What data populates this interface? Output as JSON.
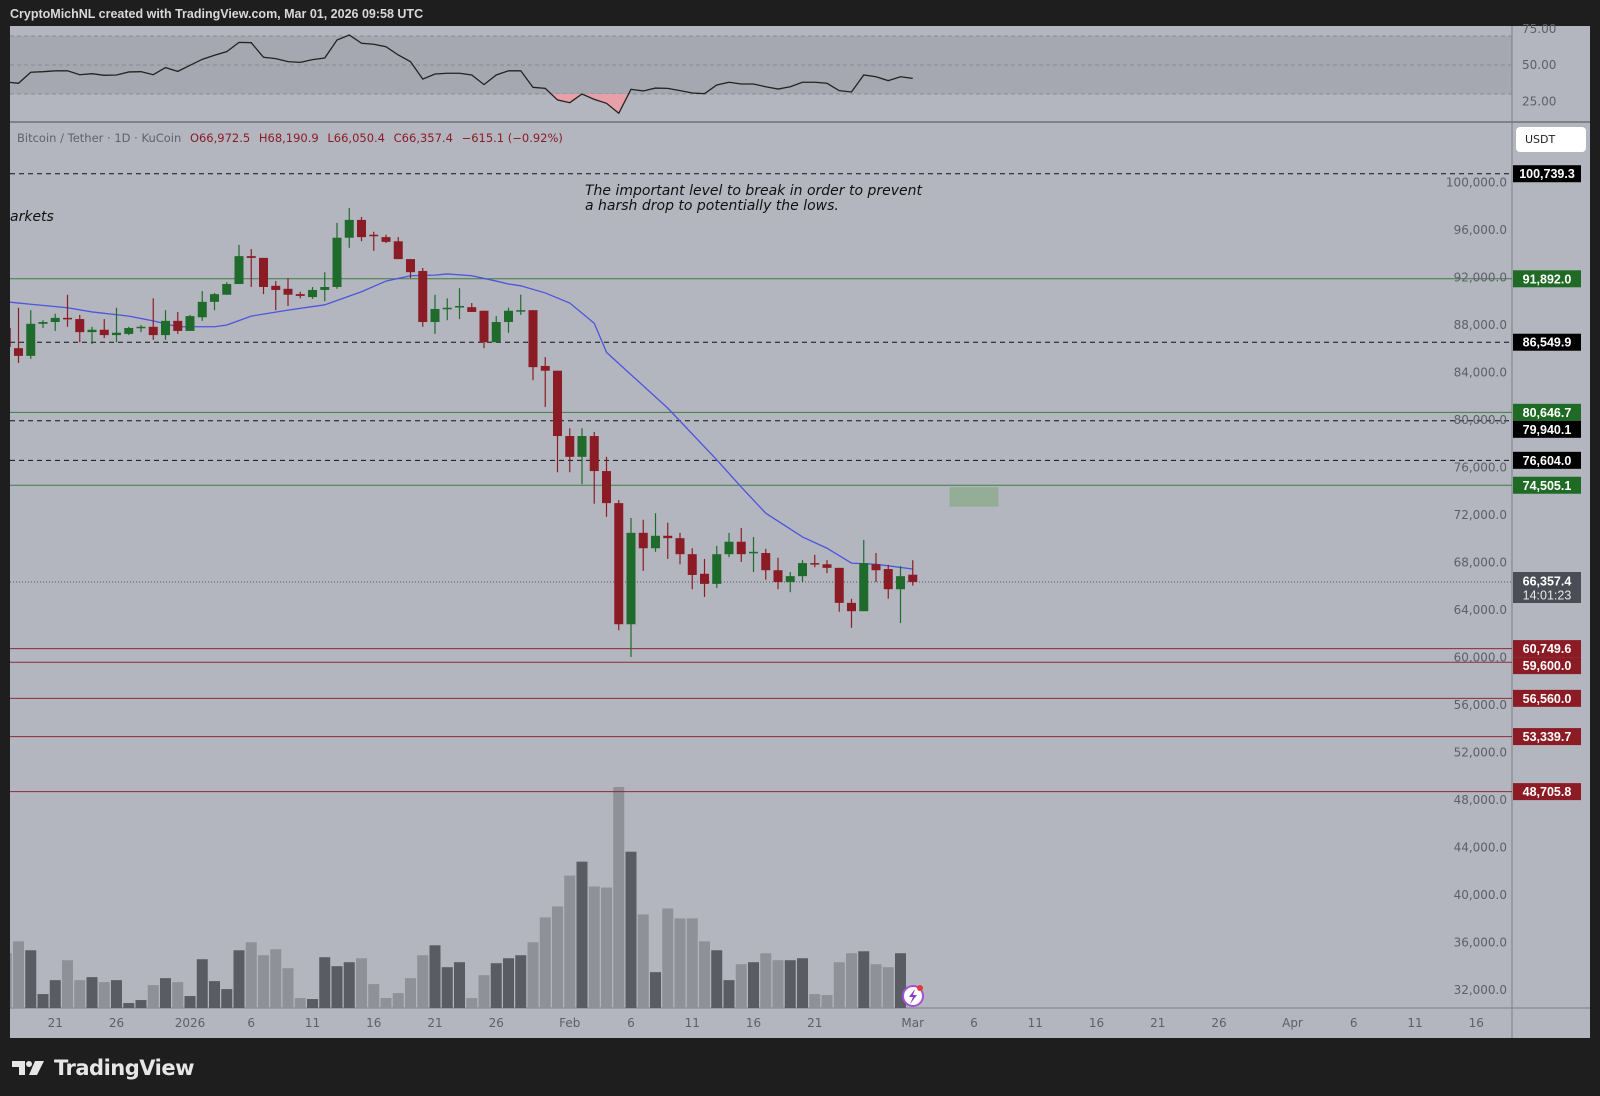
{
  "header": {
    "attribution": "CryptoMichNL created with TradingView.com, Mar 01, 2026 09:58 UTC"
  },
  "legend": {
    "symbol": "Bitcoin / Tether · 1D · KuCoin",
    "open": "O66,972.5",
    "high": "H68,190.9",
    "low": "L66,050.4",
    "close": "C66,357.4",
    "change": "−615.1 (−0.92%)"
  },
  "currency_button": "USDT",
  "annotation": {
    "line1": "The important level to break in order to prevent",
    "line2": "a harsh drop to potentially the lows."
  },
  "partial_text": "arkets",
  "logo": {
    "text": "TradingView"
  },
  "colors": {
    "up": "#1f6b2b",
    "down": "#8b1c25",
    "ma": "#4b55dd",
    "rsi": "#222222",
    "level_green": "#3f7d43",
    "level_red": "#8e2a33",
    "level_black": "#111111",
    "vol_up": "#5a5c63",
    "vol_down": "#8f9199",
    "background": "#b3b6bf"
  },
  "chart_data": {
    "type": "candlestick",
    "symbol": "Bitcoin / Tether",
    "interval": "1D",
    "exchange": "KuCoin",
    "y_axis": {
      "ticks": [
        32000,
        36000,
        40000,
        44000,
        48000,
        52000,
        56000,
        60000,
        64000,
        68000,
        72000,
        76000,
        80000,
        84000,
        88000,
        92000,
        96000,
        100000
      ],
      "tick_format": "0,000.0"
    },
    "x_axis": {
      "ticks": [
        {
          "date": "2025-12-21",
          "label": "21"
        },
        {
          "date": "2025-12-26",
          "label": "26"
        },
        {
          "date": "2026-01-01",
          "label": "2026"
        },
        {
          "date": "2026-01-06",
          "label": "6"
        },
        {
          "date": "2026-01-11",
          "label": "11"
        },
        {
          "date": "2026-01-16",
          "label": "16"
        },
        {
          "date": "2026-01-21",
          "label": "21"
        },
        {
          "date": "2026-01-26",
          "label": "26"
        },
        {
          "date": "2026-02-01",
          "label": "Feb"
        },
        {
          "date": "2026-02-06",
          "label": "6"
        },
        {
          "date": "2026-02-11",
          "label": "11"
        },
        {
          "date": "2026-02-16",
          "label": "16"
        },
        {
          "date": "2026-02-21",
          "label": "21"
        },
        {
          "date": "2026-03-01",
          "label": "Mar"
        },
        {
          "date": "2026-03-06",
          "label": "6"
        },
        {
          "date": "2026-03-11",
          "label": "11"
        },
        {
          "date": "2026-03-16",
          "label": "16"
        },
        {
          "date": "2026-03-21",
          "label": "21"
        },
        {
          "date": "2026-03-26",
          "label": "26"
        },
        {
          "date": "2026-04-01",
          "label": "Apr"
        },
        {
          "date": "2026-04-06",
          "label": "6"
        },
        {
          "date": "2026-04-11",
          "label": "11"
        },
        {
          "date": "2026-04-16",
          "label": "16"
        }
      ]
    },
    "candles": [
      {
        "d": "2025-12-17",
        "o": 87750,
        "h": 88400,
        "l": 85450,
        "c": 86150,
        "v": 55,
        "rsi": 38.3
      },
      {
        "d": "2025-12-18",
        "o": 86050,
        "h": 89450,
        "l": 84800,
        "c": 85400,
        "v": 67,
        "rsi": 37.4
      },
      {
        "d": "2025-12-19",
        "o": 85400,
        "h": 89250,
        "l": 85150,
        "c": 88100,
        "v": 58,
        "rsi": 45.0
      },
      {
        "d": "2025-12-20",
        "o": 88100,
        "h": 88400,
        "l": 87750,
        "c": 88250,
        "v": 14,
        "rsi": 45.4
      },
      {
        "d": "2025-12-21",
        "o": 88250,
        "h": 88950,
        "l": 87500,
        "c": 88600,
        "v": 28,
        "rsi": 46.0
      },
      {
        "d": "2025-12-22",
        "o": 88600,
        "h": 90550,
        "l": 87850,
        "c": 88500,
        "v": 48,
        "rsi": 46.0
      },
      {
        "d": "2025-12-23",
        "o": 88500,
        "h": 88850,
        "l": 86550,
        "c": 87400,
        "v": 28,
        "rsi": 43.3
      },
      {
        "d": "2025-12-24",
        "o": 87400,
        "h": 87850,
        "l": 86400,
        "c": 87600,
        "v": 31,
        "rsi": 44.0
      },
      {
        "d": "2025-12-25",
        "o": 87600,
        "h": 88500,
        "l": 86900,
        "c": 87150,
        "v": 26,
        "rsi": 42.9
      },
      {
        "d": "2025-12-26",
        "o": 87150,
        "h": 89450,
        "l": 86550,
        "c": 87350,
        "v": 28,
        "rsi": 43.1
      },
      {
        "d": "2025-12-27",
        "o": 87250,
        "h": 87850,
        "l": 87150,
        "c": 87750,
        "v": 5,
        "rsi": 45.2
      },
      {
        "d": "2025-12-28",
        "o": 87750,
        "h": 88000,
        "l": 87400,
        "c": 87850,
        "v": 8,
        "rsi": 45.4
      },
      {
        "d": "2025-12-29",
        "o": 87850,
        "h": 90250,
        "l": 86750,
        "c": 87150,
        "v": 23,
        "rsi": 43.3
      },
      {
        "d": "2025-12-30",
        "o": 87150,
        "h": 89250,
        "l": 86750,
        "c": 88350,
        "v": 30,
        "rsi": 48.2
      },
      {
        "d": "2025-12-31",
        "o": 88350,
        "h": 89100,
        "l": 87250,
        "c": 87500,
        "v": 26,
        "rsi": 45.6
      },
      {
        "d": "2026-01-01",
        "o": 87500,
        "h": 88850,
        "l": 87500,
        "c": 88750,
        "v": 12,
        "rsi": 49.8
      },
      {
        "d": "2026-01-02",
        "o": 88650,
        "h": 90850,
        "l": 88350,
        "c": 89950,
        "v": 49,
        "rsi": 53.9
      },
      {
        "d": "2026-01-03",
        "o": 89950,
        "h": 90700,
        "l": 89250,
        "c": 90600,
        "v": 27,
        "rsi": 56.7
      },
      {
        "d": "2026-01-04",
        "o": 90550,
        "h": 91600,
        "l": 90550,
        "c": 91450,
        "v": 19,
        "rsi": 59.2
      },
      {
        "d": "2026-01-05",
        "o": 91450,
        "h": 94750,
        "l": 91450,
        "c": 93800,
        "v": 58,
        "rsi": 65.6
      },
      {
        "d": "2026-01-06",
        "o": 93800,
        "h": 94400,
        "l": 91200,
        "c": 93650,
        "v": 66,
        "rsi": 65.4
      },
      {
        "d": "2026-01-07",
        "o": 93650,
        "h": 93650,
        "l": 90600,
        "c": 91200,
        "v": 53,
        "rsi": 55.3
      },
      {
        "d": "2026-01-08",
        "o": 91300,
        "h": 91700,
        "l": 89250,
        "c": 90950,
        "v": 59,
        "rsi": 54.4
      },
      {
        "d": "2026-01-09",
        "o": 91050,
        "h": 91950,
        "l": 89600,
        "c": 90550,
        "v": 40,
        "rsi": 52.3
      },
      {
        "d": "2026-01-10",
        "o": 90600,
        "h": 90800,
        "l": 90250,
        "c": 90450,
        "v": 10,
        "rsi": 51.8
      },
      {
        "d": "2026-01-11",
        "o": 90350,
        "h": 91200,
        "l": 90200,
        "c": 90950,
        "v": 9,
        "rsi": 53.7
      },
      {
        "d": "2026-01-12",
        "o": 90950,
        "h": 92450,
        "l": 90000,
        "c": 91200,
        "v": 51,
        "rsi": 54.8
      },
      {
        "d": "2026-01-13",
        "o": 91200,
        "h": 96600,
        "l": 91050,
        "c": 95350,
        "v": 42,
        "rsi": 67.2
      },
      {
        "d": "2026-01-14",
        "o": 95350,
        "h": 97850,
        "l": 94500,
        "c": 96850,
        "v": 46,
        "rsi": 70.7
      },
      {
        "d": "2026-01-15",
        "o": 96850,
        "h": 97100,
        "l": 95050,
        "c": 95400,
        "v": 50,
        "rsi": 65.0
      },
      {
        "d": "2026-01-16",
        "o": 95600,
        "h": 95850,
        "l": 94250,
        "c": 95500,
        "v": 24,
        "rsi": 64.3
      },
      {
        "d": "2026-01-17",
        "o": 95400,
        "h": 95600,
        "l": 94900,
        "c": 95000,
        "v": 10,
        "rsi": 62.6
      },
      {
        "d": "2026-01-18",
        "o": 95050,
        "h": 95400,
        "l": 93550,
        "c": 93550,
        "v": 15,
        "rsi": 56.9
      },
      {
        "d": "2026-01-19",
        "o": 93550,
        "h": 93550,
        "l": 91950,
        "c": 92450,
        "v": 30,
        "rsi": 52.3
      },
      {
        "d": "2026-01-20",
        "o": 92550,
        "h": 92800,
        "l": 87850,
        "c": 88250,
        "v": 53,
        "rsi": 40.3
      },
      {
        "d": "2026-01-21",
        "o": 88250,
        "h": 90550,
        "l": 87250,
        "c": 89350,
        "v": 63,
        "rsi": 43.8
      },
      {
        "d": "2026-01-22",
        "o": 89350,
        "h": 90250,
        "l": 88400,
        "c": 89450,
        "v": 41,
        "rsi": 44.3
      },
      {
        "d": "2026-01-23",
        "o": 89500,
        "h": 91100,
        "l": 88500,
        "c": 89600,
        "v": 46,
        "rsi": 44.3
      },
      {
        "d": "2026-01-24",
        "o": 89500,
        "h": 89850,
        "l": 89100,
        "c": 89100,
        "v": 10,
        "rsi": 43.1
      },
      {
        "d": "2026-01-25",
        "o": 89200,
        "h": 89200,
        "l": 86050,
        "c": 86550,
        "v": 33,
        "rsi": 36.5
      },
      {
        "d": "2026-01-26",
        "o": 86550,
        "h": 88750,
        "l": 86550,
        "c": 88250,
        "v": 45,
        "rsi": 43.1
      },
      {
        "d": "2026-01-27",
        "o": 88250,
        "h": 89450,
        "l": 87350,
        "c": 89200,
        "v": 50,
        "rsi": 46.0
      },
      {
        "d": "2026-01-28",
        "o": 89200,
        "h": 90550,
        "l": 88850,
        "c": 89250,
        "v": 53,
        "rsi": 46.0
      },
      {
        "d": "2026-01-29",
        "o": 89250,
        "h": 89250,
        "l": 83350,
        "c": 84450,
        "v": 66,
        "rsi": 34.6
      },
      {
        "d": "2026-01-30",
        "o": 84550,
        "h": 85300,
        "l": 81100,
        "c": 84150,
        "v": 91,
        "rsi": 33.9
      },
      {
        "d": "2026-01-31",
        "o": 84150,
        "h": 84150,
        "l": 75600,
        "c": 78650,
        "v": 102,
        "rsi": 25.9
      },
      {
        "d": "2026-02-01",
        "o": 78650,
        "h": 79300,
        "l": 75600,
        "c": 76900,
        "v": 133,
        "rsi": 24.0
      },
      {
        "d": "2026-02-02",
        "o": 76900,
        "h": 79300,
        "l": 74600,
        "c": 78650,
        "v": 147,
        "rsi": 30.0
      },
      {
        "d": "2026-02-03",
        "o": 78650,
        "h": 79000,
        "l": 72950,
        "c": 75700,
        "v": 122,
        "rsi": 26.3
      },
      {
        "d": "2026-02-04",
        "o": 75700,
        "h": 76900,
        "l": 71850,
        "c": 73000,
        "v": 121,
        "rsi": 23.6
      },
      {
        "d": "2026-02-05",
        "o": 73000,
        "h": 73250,
        "l": 62300,
        "c": 62800,
        "v": 222,
        "rsi": 16.7
      },
      {
        "d": "2026-02-06",
        "o": 62800,
        "h": 71750,
        "l": 60050,
        "c": 70500,
        "v": 157,
        "rsi": 33.2
      },
      {
        "d": "2026-02-07",
        "o": 70500,
        "h": 71600,
        "l": 67300,
        "c": 69200,
        "v": 94,
        "rsi": 32.1
      },
      {
        "d": "2026-02-08",
        "o": 69200,
        "h": 72150,
        "l": 68900,
        "c": 70250,
        "v": 36,
        "rsi": 34.1
      },
      {
        "d": "2026-02-09",
        "o": 70250,
        "h": 71350,
        "l": 68300,
        "c": 70050,
        "v": 100,
        "rsi": 33.9
      },
      {
        "d": "2026-02-10",
        "o": 70050,
        "h": 70500,
        "l": 67850,
        "c": 68700,
        "v": 90,
        "rsi": 32.3
      },
      {
        "d": "2026-02-11",
        "o": 68700,
        "h": 69200,
        "l": 65750,
        "c": 66950,
        "v": 90,
        "rsi": 30.7
      },
      {
        "d": "2026-02-12",
        "o": 67050,
        "h": 68300,
        "l": 65100,
        "c": 66200,
        "v": 67,
        "rsi": 30.2
      },
      {
        "d": "2026-02-13",
        "o": 66200,
        "h": 69400,
        "l": 65850,
        "c": 68700,
        "v": 58,
        "rsi": 36.2
      },
      {
        "d": "2026-02-14",
        "o": 68700,
        "h": 70500,
        "l": 68450,
        "c": 69750,
        "v": 28,
        "rsi": 38.1
      },
      {
        "d": "2026-02-15",
        "o": 69750,
        "h": 70900,
        "l": 68050,
        "c": 68700,
        "v": 44,
        "rsi": 36.9
      },
      {
        "d": "2026-02-16",
        "o": 68800,
        "h": 70150,
        "l": 67200,
        "c": 68900,
        "v": 46,
        "rsi": 36.9
      },
      {
        "d": "2026-02-17",
        "o": 68800,
        "h": 69150,
        "l": 66550,
        "c": 67350,
        "v": 55,
        "rsi": 35.0
      },
      {
        "d": "2026-02-18",
        "o": 67350,
        "h": 68400,
        "l": 65750,
        "c": 66350,
        "v": 48,
        "rsi": 33.4
      },
      {
        "d": "2026-02-19",
        "o": 66350,
        "h": 67200,
        "l": 65500,
        "c": 66850,
        "v": 48,
        "rsi": 35.0
      },
      {
        "d": "2026-02-20",
        "o": 66850,
        "h": 68200,
        "l": 66350,
        "c": 67950,
        "v": 50,
        "rsi": 38.1
      },
      {
        "d": "2026-02-21",
        "o": 67950,
        "h": 68650,
        "l": 67600,
        "c": 67850,
        "v": 14,
        "rsi": 38.1
      },
      {
        "d": "2026-02-22",
        "o": 67850,
        "h": 68200,
        "l": 67100,
        "c": 67550,
        "v": 13,
        "rsi": 37.4
      },
      {
        "d": "2026-02-23",
        "o": 67550,
        "h": 67550,
        "l": 63850,
        "c": 64600,
        "v": 46,
        "rsi": 32.3
      },
      {
        "d": "2026-02-24",
        "o": 64600,
        "h": 64950,
        "l": 62500,
        "c": 63900,
        "v": 55,
        "rsi": 31.4
      },
      {
        "d": "2026-02-25",
        "o": 63900,
        "h": 69900,
        "l": 63900,
        "c": 67950,
        "v": 57,
        "rsi": 43.1
      },
      {
        "d": "2026-02-26",
        "o": 67850,
        "h": 68800,
        "l": 66350,
        "c": 67350,
        "v": 44,
        "rsi": 41.9
      },
      {
        "d": "2026-02-27",
        "o": 67450,
        "h": 67800,
        "l": 64950,
        "c": 65750,
        "v": 41,
        "rsi": 39.2
      },
      {
        "d": "2026-02-28",
        "o": 65750,
        "h": 67700,
        "l": 62900,
        "c": 66850,
        "v": 55,
        "rsi": 41.9
      },
      {
        "d": "2026-03-01",
        "o": 66972.5,
        "h": 68190.9,
        "l": 66050.4,
        "c": 66357.4,
        "v": null,
        "rsi": 40.8
      }
    ],
    "moving_average": [
      [
        "2025-12-17",
        89950
      ],
      [
        "2025-12-19",
        89750
      ],
      [
        "2025-12-22",
        89450
      ],
      [
        "2025-12-24",
        89100
      ],
      [
        "2025-12-27",
        88750
      ],
      [
        "2025-12-29",
        88350
      ],
      [
        "2025-12-31",
        87850
      ],
      [
        "2026-01-03",
        87850
      ],
      [
        "2026-01-04",
        88000
      ],
      [
        "2026-01-06",
        88750
      ],
      [
        "2026-01-09",
        89250
      ],
      [
        "2026-01-12",
        89700
      ],
      [
        "2026-01-15",
        90800
      ],
      [
        "2026-01-17",
        91700
      ],
      [
        "2026-01-19",
        92150
      ],
      [
        "2026-01-21",
        92200
      ],
      [
        "2026-01-22",
        92300
      ],
      [
        "2026-01-24",
        92150
      ],
      [
        "2026-01-26",
        91700
      ],
      [
        "2026-01-27",
        91450
      ],
      [
        "2026-01-28",
        91300
      ],
      [
        "2026-01-30",
        90700
      ],
      [
        "2026-02-01",
        89850
      ],
      [
        "2026-02-03",
        88150
      ],
      [
        "2026-02-04",
        85700
      ],
      [
        "2026-02-09",
        81000
      ],
      [
        "2026-02-13",
        76650
      ],
      [
        "2026-02-15",
        74350
      ],
      [
        "2026-02-17",
        72150
      ],
      [
        "2026-02-20",
        70150
      ],
      [
        "2026-02-22",
        69200
      ],
      [
        "2026-02-24",
        67950
      ],
      [
        "2026-02-26",
        67850
      ],
      [
        "2026-03-01",
        67450
      ]
    ],
    "rsi_pane": {
      "ticks": [
        {
          "value": 75,
          "label": "75.00"
        },
        {
          "value": 50,
          "label": "50.00"
        },
        {
          "value": 25,
          "label": "25.00"
        }
      ],
      "bands": [
        70,
        50,
        30
      ],
      "oversold_fill": "#e8a0a8"
    },
    "levels": [
      {
        "price": 100739.3,
        "label": "100,739.3",
        "style": "dashed",
        "color": "black"
      },
      {
        "price": 91892.0,
        "label": "91,892.0",
        "style": "solid",
        "color": "green"
      },
      {
        "price": 86549.9,
        "label": "86,549.9",
        "style": "dashed",
        "color": "black"
      },
      {
        "price": 80646.7,
        "label": "80,646.7",
        "style": "solid",
        "color": "green"
      },
      {
        "price": 79940.1,
        "label": "79,940.1",
        "style": "dashed",
        "color": "black"
      },
      {
        "price": 76604.0,
        "label": "76,604.0",
        "style": "dashed",
        "color": "black"
      },
      {
        "price": 74505.1,
        "label": "74,505.1",
        "style": "solid",
        "color": "green"
      },
      {
        "price": 60749.6,
        "label": "60,749.6",
        "style": "solid",
        "color": "red"
      },
      {
        "price": 59600.0,
        "label": "59,600.0",
        "style": "solid",
        "color": "red"
      },
      {
        "price": 56560.0,
        "label": "56,560.0",
        "style": "solid",
        "color": "red"
      },
      {
        "price": 53339.7,
        "label": "53,339.7",
        "style": "solid",
        "color": "red"
      },
      {
        "price": 48705.8,
        "label": "48,705.8",
        "style": "solid",
        "color": "red"
      }
    ],
    "current_price": {
      "price": 66357.4,
      "label": "66,357.4",
      "countdown": "14:01:23"
    },
    "zone": {
      "from": "2026-03-04",
      "to": "2026-03-08",
      "top": 74350,
      "bottom": 72700,
      "color": "#94ad96"
    }
  }
}
